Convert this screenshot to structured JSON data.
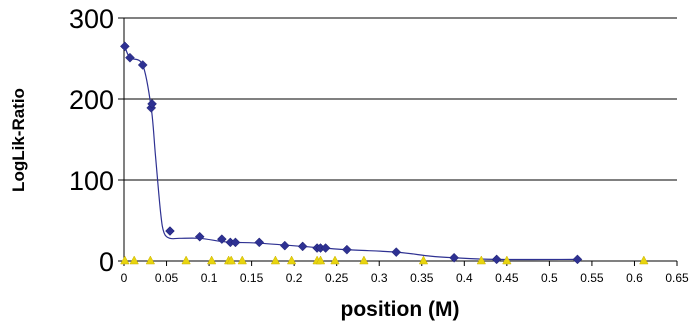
{
  "chart_data": {
    "type": "scatter",
    "xlabel": "position (M)",
    "ylabel": "LogLik-Ratio",
    "xlim": [
      0,
      0.65
    ],
    "ylim": [
      0,
      300
    ],
    "xticks": [
      "0",
      "0.05",
      "0.1",
      "0.15",
      "0.2",
      "0.25",
      "0.3",
      "0.35",
      "0.4",
      "0.45",
      "0.5",
      "0.55",
      "0.6",
      "0.65"
    ],
    "yticks": [
      "0",
      "100",
      "200",
      "300"
    ],
    "grid": "horizontal",
    "legend": "none",
    "series": [
      {
        "marker": "diamond",
        "color": "#2e3192",
        "x": [
          0.001,
          0.007,
          0.022,
          0.032,
          0.033,
          0.054,
          0.089,
          0.115,
          0.125,
          0.131,
          0.159,
          0.189,
          0.21,
          0.227,
          0.231,
          0.237,
          0.262,
          0.32,
          0.388,
          0.438,
          0.533
        ],
        "y": [
          265,
          251,
          242,
          189,
          194,
          37,
          30,
          27,
          23,
          23,
          23,
          19,
          18,
          16,
          16,
          16,
          14,
          11,
          4,
          2,
          2
        ]
      },
      {
        "marker": "triangle",
        "color": "#e8d40f",
        "x": [
          0.001,
          0.012,
          0.031,
          0.073,
          0.103,
          0.123,
          0.126,
          0.139,
          0.178,
          0.197,
          0.227,
          0.231,
          0.248,
          0.282,
          0.352,
          0.42,
          0.45,
          0.611
        ],
        "y": [
          0,
          0,
          0,
          0,
          0,
          0,
          0,
          0,
          0,
          0,
          0,
          0,
          0,
          0,
          0,
          0,
          0,
          0
        ]
      }
    ],
    "trend_line": {
      "color": "#2e3192",
      "x": [
        0.001,
        0.007,
        0.022,
        0.032,
        0.037,
        0.043,
        0.047,
        0.054,
        0.065,
        0.089,
        0.115,
        0.131,
        0.159,
        0.21,
        0.262,
        0.32,
        0.36,
        0.388,
        0.438,
        0.533
      ],
      "y": [
        265,
        251,
        242,
        189,
        130,
        60,
        35,
        28,
        28,
        28,
        24,
        23,
        22,
        18,
        14,
        11,
        6,
        4,
        2,
        2
      ]
    }
  }
}
